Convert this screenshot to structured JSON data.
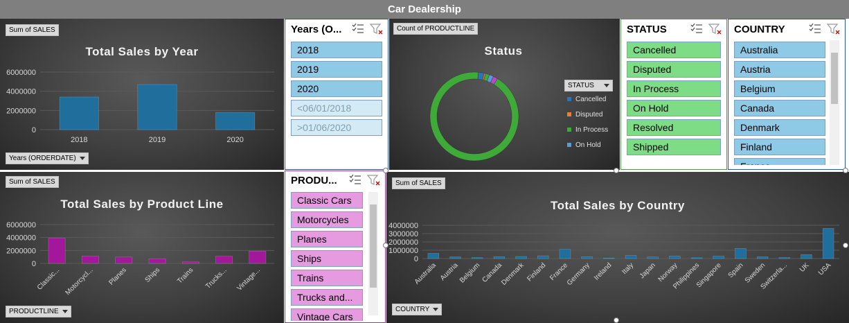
{
  "page_title": "Car Dealership",
  "fields": {
    "sum_sales": "Sum of SALES",
    "count_productline": "Count of PRODUCTLINE",
    "years_orderdate": "Years (ORDERDATE)",
    "productline": "PRODUCTLINE",
    "status": "STATUS",
    "country": "COUNTRY"
  },
  "slicers": {
    "years": {
      "title": "Years (O...",
      "items": [
        "2018",
        "2019",
        "2020",
        "<06/01/2018",
        ">01/06/2020"
      ],
      "inactive": [
        3,
        4
      ]
    },
    "status": {
      "title": "STATUS",
      "items": [
        "Cancelled",
        "Disputed",
        "In Process",
        "On Hold",
        "Resolved",
        "Shipped"
      ]
    },
    "country": {
      "title": "COUNTRY",
      "items": [
        "Australia",
        "Austria",
        "Belgium",
        "Canada",
        "Denmark",
        "Finland",
        "France"
      ]
    },
    "productline": {
      "title": "PRODU...",
      "items": [
        "Classic Cars",
        "Motorcycles",
        "Planes",
        "Ships",
        "Trains",
        "Trucks and...",
        "Vintage Cars"
      ]
    }
  },
  "colors": {
    "bar_blue": "#1f6e9c",
    "bar_pink": "#a3189a",
    "donut_green": "#3fa93a",
    "cancelled": "#2e75b6",
    "disputed": "#ed7d31",
    "in_process": "#3fa93a",
    "on_hold": "#5b9bd5"
  },
  "chart_data": [
    {
      "type": "bar",
      "title": "Total Sales by Year",
      "categories": [
        "2018",
        "2019",
        "2020"
      ],
      "values": [
        3400000,
        4700000,
        1800000
      ],
      "ylim": [
        0,
        6000000
      ],
      "yticks": [
        "6000000",
        "4000000",
        "2000000",
        "0"
      ]
    },
    {
      "type": "bar",
      "title": "Total Sales by Product Line",
      "categories": [
        "Classic...",
        "Motorcycl...",
        "Planes",
        "Ships",
        "Trains",
        "Trucks...",
        "Vintage..."
      ],
      "values": [
        3900000,
        1150000,
        980000,
        720000,
        230000,
        1100000,
        1900000
      ],
      "ylim": [
        0,
        6000000
      ],
      "yticks": [
        "6000000",
        "4000000",
        "2000000",
        "0"
      ]
    },
    {
      "type": "pie",
      "title": "Status",
      "legend_title": "STATUS",
      "categories": [
        "Cancelled",
        "Disputed",
        "In Process",
        "On Hold",
        "Resolved",
        "Shipped"
      ],
      "values": [
        60,
        14,
        41,
        44,
        47,
        2617
      ],
      "legend_shown": [
        "Cancelled",
        "Disputed",
        "In Process",
        "On Hold"
      ]
    },
    {
      "type": "bar",
      "title": "Total Sales by Country",
      "categories": [
        "Australia",
        "Austria",
        "Belgium",
        "Canada",
        "Denmark",
        "Finland",
        "France",
        "Germany",
        "Ireland",
        "Italy",
        "Japan",
        "Norway",
        "Philippines",
        "Singapore",
        "Spain",
        "Sweden",
        "Switzerla...",
        "UK",
        "USA"
      ],
      "values": [
        630000,
        200000,
        108000,
        224000,
        245000,
        329000,
        1110000,
        220000,
        57000,
        374000,
        188000,
        307000,
        94000,
        288000,
        1215000,
        210000,
        117000,
        478000,
        3627000
      ],
      "ylim": [
        0,
        4000000
      ],
      "yticks": [
        "4000000",
        "3000000",
        "2000000",
        "1000000",
        "0"
      ]
    }
  ]
}
